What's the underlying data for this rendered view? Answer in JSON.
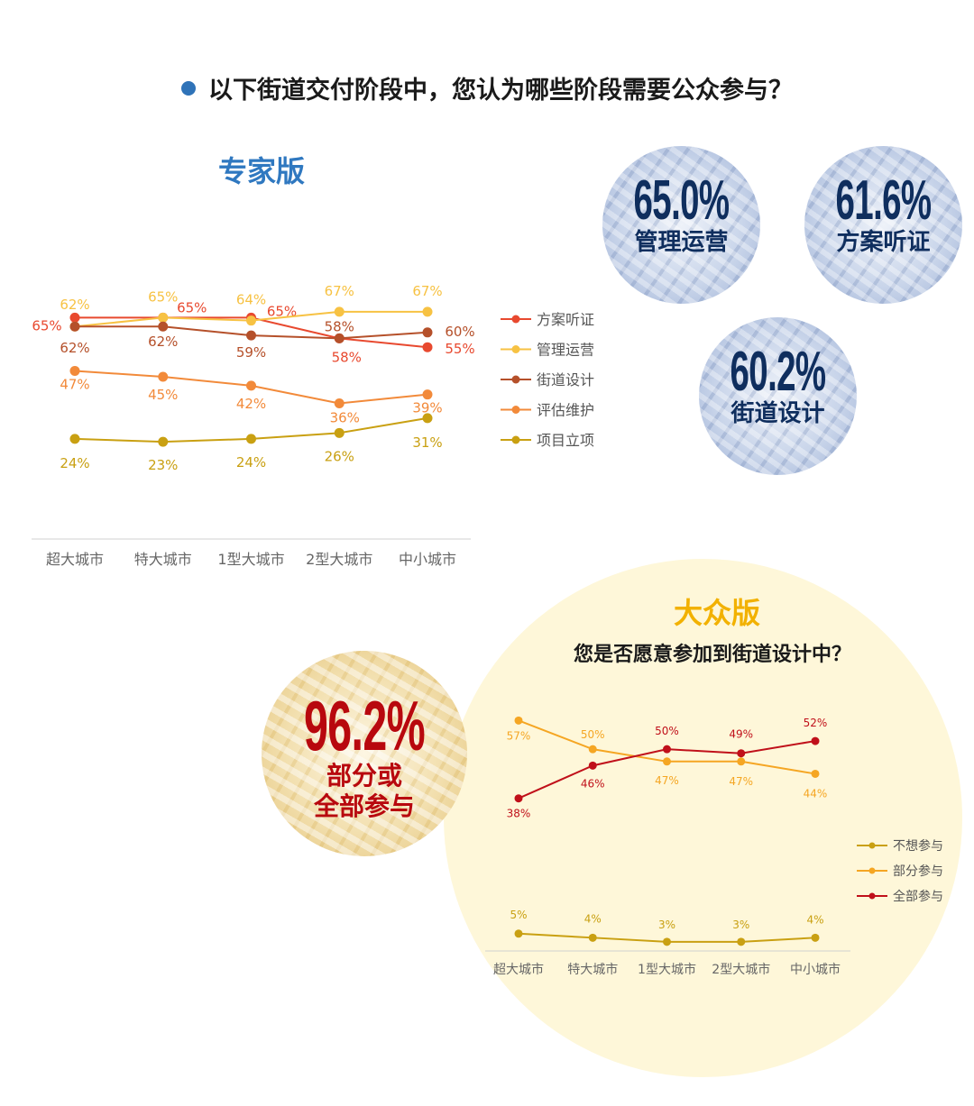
{
  "header": {
    "question": "以下街道交付阶段中，您认为哪些阶段需要公众参与？"
  },
  "expert": {
    "title": "专家版",
    "badges": [
      {
        "value": "65.0%",
        "label": "管理运营"
      },
      {
        "value": "61.6%",
        "label": "方案听证"
      },
      {
        "value": "60.2%",
        "label": "街道设计"
      }
    ]
  },
  "public": {
    "title": "大众版",
    "question": "您是否愿意参加到街道设计中？",
    "badge": {
      "value": "96.2%",
      "label_line1": "部分或",
      "label_line2": "全部参与"
    }
  },
  "chart_data": [
    {
      "type": "line",
      "categories": [
        "超大城市",
        "特大城市",
        "1型大城市",
        "2型大城市",
        "中小城市"
      ],
      "series": [
        {
          "name": "方案听证",
          "color": "#e8492f",
          "values": [
            65,
            65,
            65,
            58,
            55
          ],
          "labels": [
            "65%",
            "65%",
            "65%",
            "58%",
            "55%"
          ]
        },
        {
          "name": "管理运营",
          "color": "#f7c243",
          "values": [
            62,
            65,
            64,
            67,
            67
          ],
          "labels": [
            "62%",
            "65%",
            "64%",
            "67%",
            "67%"
          ]
        },
        {
          "name": "街道设计",
          "color": "#b5502a",
          "values": [
            62,
            62,
            59,
            58,
            60
          ],
          "labels": [
            "62%",
            "62%",
            "59%",
            "58%",
            "60%"
          ]
        },
        {
          "name": "评估维护",
          "color": "#f28a3a",
          "values": [
            47,
            45,
            42,
            36,
            39
          ],
          "labels": [
            "47%",
            "45%",
            "42%",
            "36%",
            "39%"
          ]
        },
        {
          "name": "项目立项",
          "color": "#c9a012",
          "values": [
            24,
            23,
            24,
            26,
            31
          ],
          "labels": [
            "24%",
            "23%",
            "24%",
            "26%",
            "31%"
          ]
        }
      ],
      "ylim": [
        0,
        100
      ],
      "legend": "right"
    },
    {
      "type": "line",
      "categories": [
        "超大城市",
        "特大城市",
        "1型大城市",
        "2型大城市",
        "中小城市"
      ],
      "series": [
        {
          "name": "不想参与",
          "color": "#c9a012",
          "values": [
            5,
            4,
            3,
            3,
            4
          ],
          "labels": [
            "5%",
            "4%",
            "3%",
            "3%",
            "4%"
          ]
        },
        {
          "name": "部分参与",
          "color": "#f5a623",
          "values": [
            57,
            50,
            47,
            47,
            44
          ],
          "labels": [
            "57%",
            "50%",
            "47%",
            "47%",
            "44%"
          ]
        },
        {
          "name": "全部参与",
          "color": "#c0101a",
          "values": [
            38,
            46,
            50,
            49,
            52
          ],
          "labels": [
            "38%",
            "46%",
            "50%",
            "49%",
            "52%"
          ]
        }
      ],
      "ylim": [
        0,
        60
      ],
      "legend": "right"
    }
  ]
}
